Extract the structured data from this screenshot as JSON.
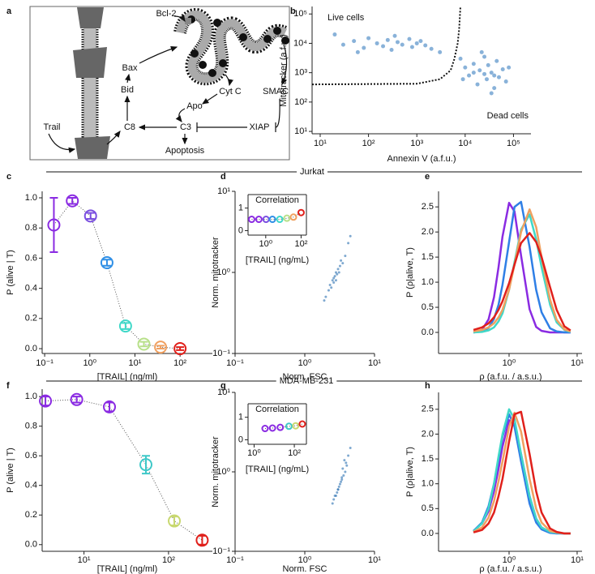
{
  "diagram": {
    "panel": "a",
    "labels": {
      "bcl2": "Bcl-2",
      "bax": "Bax",
      "bid": "Bid",
      "trail": "Trail",
      "c8": "C8",
      "c3": "C3",
      "apo": "Apo",
      "cytc": "Cyt C",
      "smac": "SMAC",
      "xiap": "XIAP",
      "apoptosis": "Apoptosis"
    }
  },
  "groups": [
    "Jurkat",
    "MDA-MB-231"
  ],
  "chart_data": [
    {
      "type": "scatter",
      "panel": "b",
      "xlabel": "Annexin V (a.f.u.)",
      "ylabel": "Mitotracker (a.f.u.)",
      "xlog": true,
      "ylog": true,
      "color": "#3a7fc0",
      "annotations": [
        "Live cells",
        "Dead cells"
      ],
      "xlim": [
        6.8,
        230000
      ],
      "ylim": [
        8.3,
        180000
      ],
      "xticks": [
        {
          "value": 10,
          "label": "10¹"
        },
        {
          "value": 100,
          "label": "10²"
        },
        {
          "value": 1000,
          "label": "10³"
        },
        {
          "value": 10000,
          "label": "10⁴"
        },
        {
          "value": 100000,
          "label": "10⁵"
        }
      ],
      "yticks": [
        {
          "value": 10,
          "label": "10¹"
        },
        {
          "value": 100,
          "label": "10²"
        },
        {
          "value": 1000,
          "label": "10³"
        },
        {
          "value": 10000,
          "label": "10⁴"
        },
        {
          "value": 100000,
          "label": "10⁵"
        }
      ],
      "x": [
        30,
        50,
        80,
        100,
        150,
        200,
        250,
        300,
        400,
        500,
        700,
        800,
        1000,
        1200,
        1500,
        2000,
        20,
        60,
        350,
        3000,
        8000,
        10000,
        12000,
        15000,
        18000,
        20000,
        22000,
        25000,
        28000,
        30000,
        35000,
        40000,
        45000,
        50000,
        60000,
        70000,
        15000,
        25000,
        35000,
        9000,
        80000,
        40000
      ],
      "values": [
        9000,
        12000,
        7000,
        15000,
        10000,
        8000,
        13000,
        6000,
        11000,
        9000,
        14000,
        7500,
        10000,
        12000,
        8500,
        6500,
        20000,
        5000,
        18000,
        5000,
        3000,
        1500,
        800,
        2000,
        400,
        1200,
        5000,
        900,
        600,
        1800,
        1000,
        300,
        2500,
        700,
        1300,
        500,
        1000,
        3500,
        200,
        600,
        1500,
        800
      ],
      "boundary": {
        "x": [
          6.8,
          1000,
          3000,
          5000,
          6000,
          7000,
          7500,
          8000
        ],
        "y": [
          400,
          420,
          600,
          1200,
          3000,
          10000,
          30000,
          180000
        ]
      }
    },
    {
      "type": "line",
      "panel": "c",
      "xlabel": "[TRAIL] (ng/ml)",
      "ylabel": "P (alive | T)",
      "xlog": true,
      "xlim": [
        0.088,
        520
      ],
      "ylim": [
        -0.032,
        1.043
      ],
      "xticks": [
        {
          "value": 0.1,
          "label": "10⁻¹"
        },
        {
          "value": 1,
          "label": "10⁰"
        },
        {
          "value": 10,
          "label": "10¹"
        },
        {
          "value": 100,
          "label": "10²"
        }
      ],
      "yticks": [
        {
          "value": 0,
          "label": "0.0"
        },
        0.2,
        0.4,
        0.6,
        0.8,
        {
          "value": 1,
          "label": "1.0"
        }
      ],
      "x": [
        0.16,
        0.41,
        1.04,
        2.4,
        6.2,
        15.8,
        37,
        100
      ],
      "values": [
        0.82,
        0.98,
        0.88,
        0.57,
        0.15,
        0.03,
        0.01,
        0.0
      ],
      "errors": [
        0.18,
        0.02,
        0.02,
        0.02,
        0.02,
        0.015,
        0.01,
        0.01
      ],
      "colors": [
        "#8a2be2",
        "#8a2be2",
        "#7a4fe0",
        "#2f8fe6",
        "#3fd8c8",
        "#b8e08a",
        "#f0a060",
        "#e0201b"
      ]
    },
    {
      "type": "scatter",
      "panel": "d",
      "xlabel": "Norm. FSC",
      "ylabel": "Norm. mitotracker",
      "xlog": true,
      "ylog": true,
      "color": "#2a6fb0",
      "xlim": [
        0.1,
        10
      ],
      "ylim": [
        0.1,
        10
      ],
      "xticks": [
        {
          "value": 0.1,
          "label": "10⁻¹"
        },
        {
          "value": 1,
          "label": "10⁰"
        },
        {
          "value": 10,
          "label": "10¹"
        }
      ],
      "yticks": [
        {
          "value": 0.1,
          "label": "10⁻¹"
        },
        {
          "value": 1,
          "label": "10⁰"
        },
        {
          "value": 10,
          "label": "10¹"
        }
      ],
      "x": [
        2.0,
        2.3,
        2.5,
        2.7,
        2.8,
        3.0,
        3.2,
        2.4,
        2.6,
        3.5,
        3.8,
        4.2,
        2.2,
        2.9,
        3.1,
        2.6,
        1.9,
        3.3,
        4.5,
        2.8
      ],
      "values": [
        0.5,
        0.7,
        0.8,
        0.9,
        1.0,
        1.1,
        1.2,
        0.65,
        0.85,
        1.3,
        1.6,
        2.3,
        0.6,
        0.95,
        1.0,
        0.75,
        0.45,
        1.4,
        2.8,
        0.8
      ],
      "inset": {
        "type": "line",
        "title": "Correlation",
        "xlabel": "[TRAIL] (ng/mL)",
        "xlog": true,
        "xlim": [
          0.1,
          200
        ],
        "ylim": [
          -0.2,
          1.6
        ],
        "xticks": [
          {
            "value": 1,
            "label": "10⁰"
          },
          {
            "value": 100,
            "label": "10²"
          }
        ],
        "yticks": [
          0,
          1
        ],
        "x": [
          0.16,
          0.41,
          1.04,
          2.4,
          6.2,
          15.8,
          37,
          100
        ],
        "values": [
          0.5,
          0.5,
          0.5,
          0.5,
          0.5,
          0.55,
          0.6,
          0.8
        ],
        "colors": [
          "#8a2be2",
          "#8a2be2",
          "#7a4fe0",
          "#2f8fe6",
          "#3fd8c8",
          "#b8e08a",
          "#f0a060",
          "#e0201b"
        ]
      }
    },
    {
      "type": "line",
      "panel": "e",
      "xlabel": "ρ (a.f.u. / a.s.u.)",
      "ylabel": "P (ρ|alive, T)",
      "xlog": true,
      "xlim": [
        0.092,
        11.8
      ],
      "ylim": [
        -0.42,
        2.81
      ],
      "xticks": [
        {
          "value": 1,
          "label": "10⁰"
        },
        {
          "value": 10,
          "label": "10¹"
        }
      ],
      "yticks": [
        {
          "value": 0,
          "label": "0.0"
        },
        0.5,
        {
          "value": 1,
          "label": "1.0"
        },
        1.5,
        {
          "value": 2,
          "label": "2.0"
        },
        2.5
      ],
      "x": [
        0.3,
        0.4,
        0.5,
        0.6,
        0.7,
        0.8,
        1,
        1.2,
        1.5,
        2,
        2.5,
        3,
        4,
        5,
        6.5,
        8
      ],
      "series": [
        {
          "color": "#8a2be2",
          "values": [
            0,
            0.05,
            0.26,
            0.7,
            1.3,
            1.91,
            2.58,
            2.41,
            1.53,
            0.46,
            0.11,
            0.03,
            0,
            0,
            0,
            0
          ]
        },
        {
          "color": "#2f7fe6",
          "values": [
            0,
            0.02,
            0.09,
            0.27,
            0.55,
            0.95,
            1.8,
            2.5,
            2.6,
            1.7,
            0.85,
            0.4,
            0.08,
            0.02,
            0,
            0
          ]
        },
        {
          "color": "#40d8c8",
          "values": [
            0,
            0.01,
            0.04,
            0.1,
            0.22,
            0.38,
            0.85,
            1.4,
            2.05,
            2.35,
            1.85,
            1.3,
            0.55,
            0.2,
            0.05,
            0.01
          ]
        },
        {
          "color": "#f0a060",
          "values": [
            0.02,
            0.05,
            0.1,
            0.18,
            0.3,
            0.45,
            0.85,
            1.35,
            2.0,
            2.45,
            2.1,
            1.5,
            0.65,
            0.25,
            0.06,
            0.02
          ]
        },
        {
          "color": "#e0201b",
          "values": [
            0.05,
            0.1,
            0.18,
            0.3,
            0.45,
            0.62,
            0.98,
            1.35,
            1.78,
            1.98,
            1.8,
            1.5,
            0.9,
            0.45,
            0.12,
            0.04
          ]
        }
      ]
    },
    {
      "type": "line",
      "panel": "f",
      "xlabel": "[TRAIL] (ng/ml)",
      "ylabel": "P (alive | T)",
      "xlog": true,
      "xlim": [
        3.2,
        330
      ],
      "ylim": [
        -0.045,
        1.05
      ],
      "xticks": [
        {
          "value": 10,
          "label": "10¹"
        },
        {
          "value": 100,
          "label": "10²"
        }
      ],
      "yticks": [
        {
          "value": 0,
          "label": "0.0"
        },
        0.2,
        0.4,
        0.6,
        0.8,
        {
          "value": 1,
          "label": "1.0"
        }
      ],
      "x": [
        3.5,
        8.2,
        20,
        54,
        117,
        250
      ],
      "values": [
        0.97,
        0.98,
        0.93,
        0.54,
        0.16,
        0.03
      ],
      "errors": [
        0.03,
        0.02,
        0.03,
        0.06,
        0.03,
        0.03
      ],
      "colors": [
        "#8a2be2",
        "#8a2be2",
        "#8a2be2",
        "#3fc8c8",
        "#c8d870",
        "#e0201b"
      ]
    },
    {
      "type": "scatter",
      "panel": "g",
      "xlabel": "Norm. FSC",
      "ylabel": "Norm. mitotracker",
      "xlog": true,
      "ylog": true,
      "color": "#2a6fb0",
      "xlim": [
        0.1,
        10
      ],
      "ylim": [
        0.1,
        10
      ],
      "xticks": [
        {
          "value": 0.1,
          "label": "10⁻¹"
        },
        {
          "value": 1,
          "label": "10⁰"
        },
        {
          "value": 10,
          "label": "10¹"
        }
      ],
      "yticks": [
        {
          "value": 0.1,
          "label": "10⁻¹"
        },
        {
          "value": 1,
          "label": "10⁰"
        },
        {
          "value": 10,
          "label": "10¹"
        }
      ],
      "x": [
        2.5,
        2.8,
        3.0,
        3.2,
        3.4,
        3.6,
        3.8,
        3.1,
        2.9,
        4.0,
        4.5,
        3.3,
        2.6,
        3.5,
        3.7,
        3.0,
        4.2,
        2.7,
        3.9,
        3.4
      ],
      "values": [
        0.4,
        0.5,
        0.6,
        0.7,
        0.8,
        0.9,
        1.0,
        0.65,
        0.55,
        1.2,
        2.0,
        0.75,
        0.45,
        1.1,
        1.4,
        0.6,
        1.6,
        0.5,
        1.3,
        0.85
      ],
      "inset": {
        "type": "line",
        "title": "Correlation",
        "xlabel": "[TRAIL] (ng/mL)",
        "xlog": true,
        "xlim": [
          0.5,
          400
        ],
        "ylim": [
          -0.2,
          1.6
        ],
        "xticks": [
          {
            "value": 1,
            "label": "10⁰"
          },
          {
            "value": 100,
            "label": "10²"
          }
        ],
        "yticks": [
          0,
          1
        ],
        "x": [
          3.5,
          8.2,
          20,
          54,
          117,
          250
        ],
        "values": [
          0.5,
          0.52,
          0.55,
          0.6,
          0.62,
          0.7
        ],
        "colors": [
          "#8a2be2",
          "#8a2be2",
          "#8a2be2",
          "#3fc8c8",
          "#c8d870",
          "#e0201b"
        ]
      }
    },
    {
      "type": "line",
      "panel": "h",
      "xlabel": "ρ (a.f.u. / a.s.u.)",
      "ylabel": "P (ρ|alive, T)",
      "xlog": true,
      "xlim": [
        0.092,
        11.8
      ],
      "ylim": [
        -0.36,
        2.84
      ],
      "xticks": [
        {
          "value": 1,
          "label": "10⁰"
        },
        {
          "value": 10,
          "label": "10¹"
        }
      ],
      "yticks": [
        {
          "value": 0,
          "label": "0.0"
        },
        0.5,
        {
          "value": 1,
          "label": "1.0"
        },
        1.5,
        {
          "value": 2,
          "label": "2.0"
        },
        2.5
      ],
      "x": [
        0.3,
        0.4,
        0.5,
        0.6,
        0.7,
        0.8,
        1,
        1.2,
        1.5,
        2,
        2.5,
        3,
        4,
        5,
        6.5,
        8
      ],
      "series": [
        {
          "color": "#8a2be2",
          "values": [
            0.05,
            0.2,
            0.45,
            0.85,
            1.3,
            1.75,
            2.28,
            2.2,
            1.6,
            0.75,
            0.3,
            0.12,
            0.02,
            0.01,
            0,
            0
          ]
        },
        {
          "color": "#2f7fe6",
          "values": [
            0.05,
            0.22,
            0.55,
            1.0,
            1.5,
            1.95,
            2.4,
            2.15,
            1.45,
            0.6,
            0.22,
            0.08,
            0.01,
            0,
            0,
            0
          ]
        },
        {
          "color": "#40d8c8",
          "values": [
            0.04,
            0.2,
            0.5,
            1.0,
            1.55,
            2.0,
            2.5,
            2.3,
            1.6,
            0.75,
            0.3,
            0.12,
            0.03,
            0.01,
            0,
            0
          ]
        },
        {
          "color": "#f0a060",
          "values": [
            0.03,
            0.12,
            0.32,
            0.65,
            1.05,
            1.45,
            2.15,
            2.43,
            2.05,
            1.1,
            0.5,
            0.22,
            0.05,
            0.02,
            0,
            0
          ]
        },
        {
          "color": "#e0201b",
          "values": [
            0.02,
            0.07,
            0.2,
            0.42,
            0.75,
            1.1,
            1.85,
            2.4,
            2.45,
            1.6,
            0.85,
            0.42,
            0.1,
            0.03,
            0,
            0
          ]
        }
      ]
    }
  ]
}
